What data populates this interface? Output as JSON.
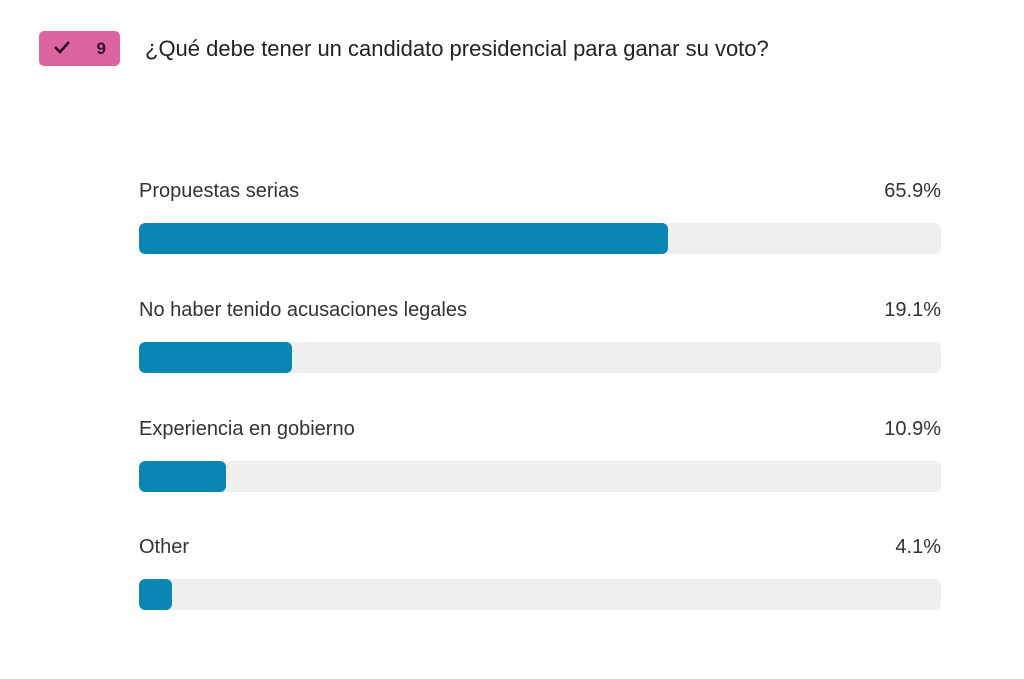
{
  "question": {
    "number": "9",
    "status_icon": "check-icon",
    "title": "¿Qué debe tener un candidato presidencial para ganar su voto?"
  },
  "colors": {
    "badge": "#dc64a0",
    "bar": "#0986b4",
    "track": "#efefef"
  },
  "options": [
    {
      "label": "Propuestas serias",
      "percent_label": "65.9%",
      "value": 65.9
    },
    {
      "label": "No haber tenido acusaciones legales",
      "percent_label": "19.1%",
      "value": 19.1
    },
    {
      "label": "Experiencia en gobierno",
      "percent_label": "10.9%",
      "value": 10.9
    },
    {
      "label": "Other",
      "percent_label": "4.1%",
      "value": 4.1
    }
  ]
}
